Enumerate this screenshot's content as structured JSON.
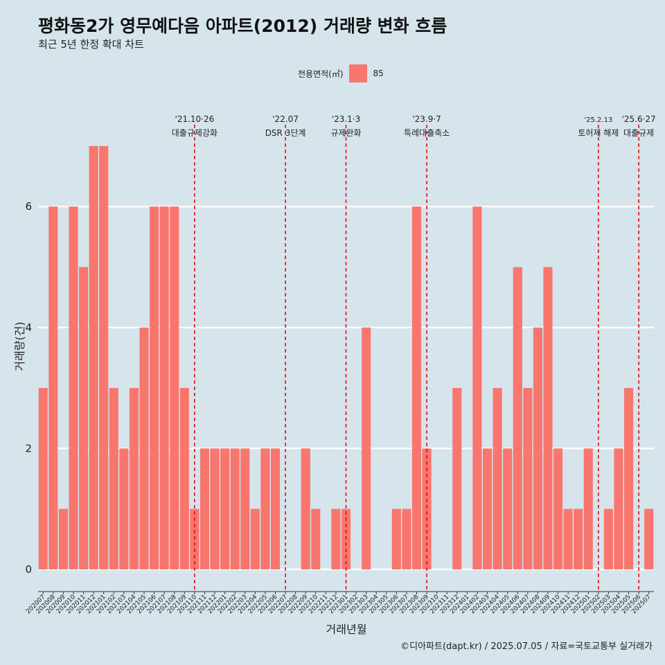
{
  "page": {
    "title": "평화동2가 영무예다음 아파트(2012) 거래량 변화 흐름",
    "subtitle": "최근 5년 한정 확대 차트",
    "caption": "©디아파트(dapt.kr) / 2025.07.05 / 자료=국토교통부 실거래가"
  },
  "legend": {
    "title": "전용면적(㎡)",
    "entries": [
      {
        "label": "85",
        "color": "#f8766d"
      }
    ]
  },
  "colors": {
    "bar": "#f8766d",
    "background": "#d6e4ec",
    "grid": "#ffffff",
    "event_line": "#e00000"
  },
  "chart_data": {
    "type": "bar",
    "xlabel": "거래년월",
    "ylabel": "거래량(건)",
    "ylim": [
      0,
      7.5
    ],
    "yticks": [
      0,
      2,
      4,
      6
    ],
    "grid": true,
    "legend_position": "top",
    "categories": [
      "202007",
      "202008",
      "202009",
      "202010",
      "202011",
      "202012",
      "202101",
      "202102",
      "202103",
      "202104",
      "202105",
      "202106",
      "202107",
      "202108",
      "202109",
      "202110",
      "202111",
      "202112",
      "202201",
      "202202",
      "202203",
      "202204",
      "202205",
      "202206",
      "202207",
      "202208",
      "202209",
      "202210",
      "202211",
      "202212",
      "202301",
      "202302",
      "202303",
      "202304",
      "202305",
      "202306",
      "202307",
      "202308",
      "202309",
      "202310",
      "202311",
      "202312",
      "202401",
      "202402",
      "202403",
      "202404",
      "202405",
      "202406",
      "202407",
      "202408",
      "202409",
      "202410",
      "202411",
      "202412",
      "202501",
      "202502",
      "202503",
      "202504",
      "202505",
      "202506",
      "202507"
    ],
    "series": [
      {
        "name": "85",
        "values": [
          3,
          6,
          1,
          6,
          5,
          7,
          7,
          3,
          2,
          3,
          4,
          6,
          6,
          6,
          3,
          1,
          2,
          2,
          2,
          2,
          2,
          1,
          2,
          2,
          0,
          0,
          2,
          1,
          0,
          1,
          1,
          0,
          4,
          0,
          0,
          1,
          1,
          6,
          2,
          0,
          0,
          3,
          0,
          6,
          2,
          3,
          2,
          5,
          3,
          4,
          5,
          2,
          1,
          1,
          2,
          0,
          1,
          2,
          3,
          0,
          1
        ]
      }
    ],
    "annotations": [
      {
        "x": "202110",
        "date": "'21.10·26",
        "label": "대출규제강화"
      },
      {
        "x": "202207",
        "date": "'22.07",
        "label": "DSR 3단계"
      },
      {
        "x": "202301",
        "date": "'23.1·3",
        "label": "규제완화"
      },
      {
        "x": "202309",
        "date": "'23.9·7",
        "label": "특례대출축소"
      },
      {
        "x": "202502",
        "date": "'25.2.13",
        "label": "토허제 해제"
      },
      {
        "x": "202506",
        "date": "'25.6·27",
        "label": "대출규제"
      }
    ]
  }
}
